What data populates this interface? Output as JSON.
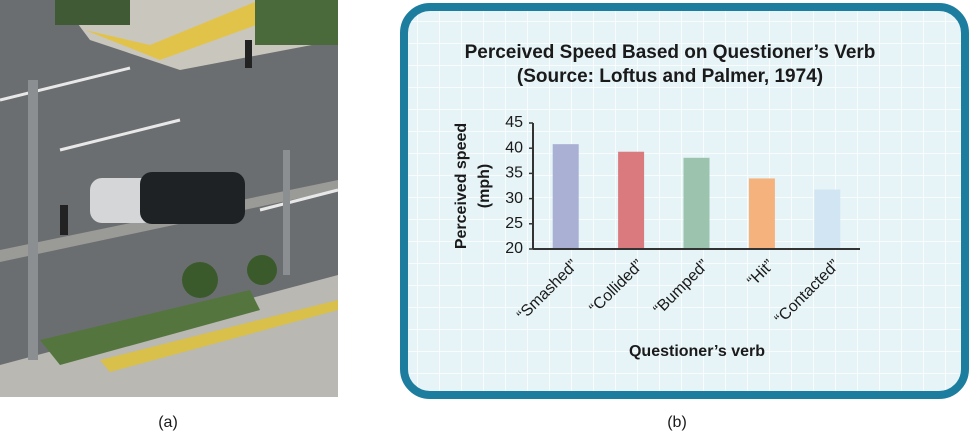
{
  "chart_data": {
    "type": "bar",
    "title": "Perceived Speed Based on Questioner’s Verb",
    "subtitle": "(Source: Loftus and Palmer, 1974)",
    "ylabel": [
      "Perceived speed",
      "(mph)"
    ],
    "xlabel": "Questioner’s verb",
    "categories": [
      "“Smashed”",
      "“Collided”",
      "“Bumped”",
      "“Hit”",
      "“Contacted”"
    ],
    "values": [
      40.8,
      39.3,
      38.1,
      34.0,
      31.8
    ],
    "colors": [
      "#a9b0d3",
      "#da7a7e",
      "#9bc3ad",
      "#f5b27c",
      "#d2e5f2"
    ],
    "ylim": [
      20,
      45
    ],
    "yticks": [
      20,
      25,
      30,
      35,
      40,
      45
    ]
  },
  "captions": [
    "(a)",
    "(b)"
  ]
}
